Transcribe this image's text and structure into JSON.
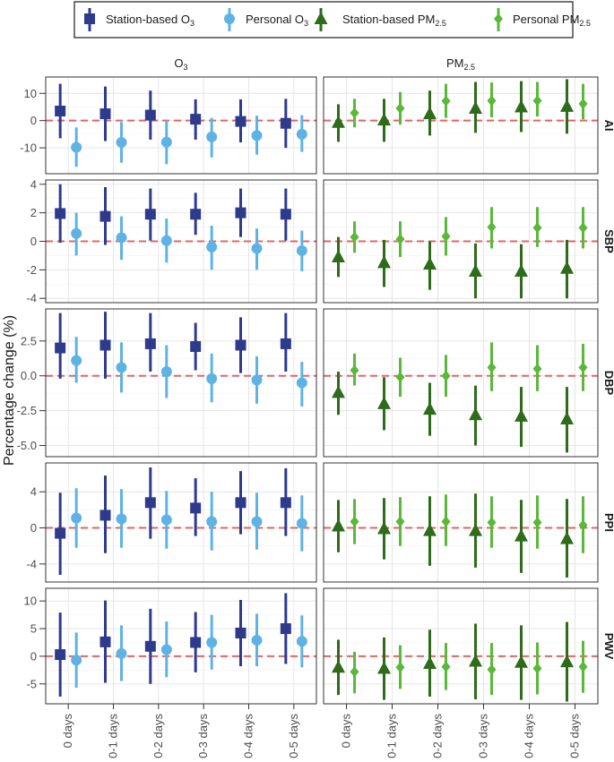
{
  "chart_data": {
    "type": "scatter",
    "subtype": "point-range faceted",
    "ylabel": "Percentage change (%)",
    "categories": [
      "0 days",
      "0-1 days",
      "0-2 days",
      "0-3 days",
      "0-4 days",
      "0-5 days"
    ],
    "legend_position": "top",
    "legend": [
      {
        "key": "station_o3",
        "label": "Station-based O",
        "sub": "3",
        "color": "#2e3a8c",
        "shape": "square"
      },
      {
        "key": "personal_o3",
        "label": "Personal O",
        "sub": "3",
        "color": "#5fb3e4",
        "shape": "circle"
      },
      {
        "key": "station_pm",
        "label": "Station-based PM",
        "sub": "2.5",
        "color": "#2e6b1a",
        "shape": "triangle"
      },
      {
        "key": "personal_pm",
        "label": "Personal PM",
        "sub": "2.5",
        "color": "#5ab83a",
        "shape": "diamond"
      }
    ],
    "columns": [
      {
        "label": "O",
        "sub": "3"
      },
      {
        "label": "PM",
        "sub": "2.5"
      }
    ],
    "rows": [
      {
        "label": "AI",
        "ylim": [
          -19.5,
          16
        ],
        "yticks": [
          {
            "v": 10,
            "t": "10"
          },
          {
            "v": 0,
            "t": "0"
          },
          {
            "v": -10,
            "t": "-10"
          }
        ],
        "col0": [
          {
            "key": "station_o3",
            "values": [
              [
                3.5,
                -6.5,
                13.5
              ],
              [
                2.5,
                -7.5,
                12.5
              ],
              [
                2.0,
                -7.0,
                11.0
              ],
              [
                0.5,
                -7.0,
                7.8
              ],
              [
                -0.3,
                -8.0,
                7.8
              ],
              [
                -1.0,
                -10.0,
                8.0
              ]
            ]
          },
          {
            "key": "personal_o3",
            "values": [
              [
                -9.8,
                -17.0,
                -2.5
              ],
              [
                -8.0,
                -15.5,
                -0.5
              ],
              [
                -7.9,
                -16.0,
                0.0
              ],
              [
                -6.0,
                -13.5,
                1.0
              ],
              [
                -5.5,
                -12.5,
                1.8
              ],
              [
                -5.0,
                -11.5,
                2.0
              ]
            ]
          }
        ],
        "col1": [
          {
            "key": "station_pm",
            "values": [
              [
                -0.7,
                -7.8,
                6.0
              ],
              [
                0.2,
                -7.8,
                8.0
              ],
              [
                2.5,
                -5.5,
                11.0
              ],
              [
                4.5,
                -4.5,
                14.2
              ],
              [
                5.0,
                -4.2,
                14.5
              ],
              [
                5.2,
                -4.8,
                15.2
              ]
            ]
          },
          {
            "key": "personal_pm",
            "values": [
              [
                2.8,
                -2.5,
                8.0
              ],
              [
                4.5,
                -1.5,
                10.5
              ],
              [
                7.2,
                1.0,
                13.5
              ],
              [
                7.3,
                1.2,
                14.0
              ],
              [
                7.3,
                1.5,
                14.2
              ],
              [
                6.2,
                0.5,
                13.5
              ]
            ]
          }
        ]
      },
      {
        "label": "SBP",
        "ylim": [
          -4.3,
          4.3
        ],
        "yticks": [
          {
            "v": 4,
            "t": "4"
          },
          {
            "v": 2,
            "t": "2"
          },
          {
            "v": 0,
            "t": "0"
          },
          {
            "v": -2,
            "t": "-2"
          },
          {
            "v": -4,
            "t": "-4"
          }
        ],
        "col0": [
          {
            "key": "station_o3",
            "values": [
              [
                1.95,
                -0.1,
                4.0
              ],
              [
                1.75,
                -0.25,
                3.8
              ],
              [
                1.9,
                0.05,
                3.7
              ],
              [
                1.9,
                0.45,
                3.4
              ],
              [
                2.0,
                0.3,
                3.7
              ],
              [
                1.9,
                0.05,
                3.7
              ]
            ]
          },
          {
            "key": "personal_o3",
            "values": [
              [
                0.55,
                -1.0,
                2.0
              ],
              [
                0.25,
                -1.3,
                1.75
              ],
              [
                0.05,
                -1.5,
                1.6
              ],
              [
                -0.4,
                -2.0,
                1.1
              ],
              [
                -0.5,
                -2.0,
                0.9
              ],
              [
                -0.65,
                -2.1,
                0.75
              ]
            ]
          }
        ],
        "col1": [
          {
            "key": "station_pm",
            "values": [
              [
                -1.1,
                -2.5,
                0.3
              ],
              [
                -1.5,
                -3.2,
                0.1
              ],
              [
                -1.6,
                -3.4,
                0.0
              ],
              [
                -2.1,
                -4.0,
                -0.15
              ],
              [
                -2.1,
                -4.0,
                -0.2
              ],
              [
                -1.9,
                -4.0,
                0.1
              ]
            ]
          },
          {
            "key": "personal_pm",
            "values": [
              [
                0.3,
                -0.8,
                1.4
              ],
              [
                0.15,
                -1.1,
                1.4
              ],
              [
                0.35,
                -1.0,
                1.7
              ],
              [
                1.0,
                -0.5,
                2.4
              ],
              [
                0.95,
                -0.4,
                2.4
              ],
              [
                0.95,
                -0.5,
                2.4
              ]
            ]
          }
        ]
      },
      {
        "label": "DBP",
        "ylim": [
          -5.8,
          4.8
        ],
        "yticks": [
          {
            "v": 2.5,
            "t": "2.5"
          },
          {
            "v": 0,
            "t": "0.0"
          },
          {
            "v": -2.5,
            "t": "-2.5"
          },
          {
            "v": -5,
            "t": "-5.0"
          }
        ],
        "col0": [
          {
            "key": "station_o3",
            "values": [
              [
                2.0,
                -0.2,
                4.5
              ],
              [
                2.2,
                -0.2,
                4.6
              ],
              [
                2.3,
                0.3,
                4.5
              ],
              [
                2.1,
                0.4,
                3.8
              ],
              [
                2.2,
                0.2,
                4.2
              ],
              [
                2.3,
                0.3,
                4.5
              ]
            ]
          },
          {
            "key": "personal_o3",
            "values": [
              [
                1.1,
                -0.5,
                2.8
              ],
              [
                0.6,
                -1.2,
                2.4
              ],
              [
                0.3,
                -1.6,
                2.2
              ],
              [
                -0.2,
                -1.9,
                1.6
              ],
              [
                -0.3,
                -2.0,
                1.4
              ],
              [
                -0.5,
                -2.2,
                1.0
              ]
            ]
          }
        ],
        "col1": [
          {
            "key": "station_pm",
            "values": [
              [
                -1.2,
                -2.8,
                0.3
              ],
              [
                -2.0,
                -3.9,
                -0.1
              ],
              [
                -2.4,
                -4.3,
                -0.5
              ],
              [
                -2.8,
                -5.0,
                -0.7
              ],
              [
                -2.9,
                -5.1,
                -0.8
              ],
              [
                -3.1,
                -5.5,
                -0.8
              ]
            ]
          },
          {
            "key": "personal_pm",
            "values": [
              [
                0.4,
                -0.7,
                1.6
              ],
              [
                -0.1,
                -1.5,
                1.3
              ],
              [
                0.0,
                -1.5,
                1.5
              ],
              [
                0.6,
                -1.1,
                2.4
              ],
              [
                0.5,
                -1.1,
                2.2
              ],
              [
                0.6,
                -1.1,
                2.3
              ]
            ]
          }
        ]
      },
      {
        "label": "PPI",
        "ylim": [
          -6.0,
          7.2
        ],
        "yticks": [
          {
            "v": 4,
            "t": "4"
          },
          {
            "v": 0,
            "t": "0"
          },
          {
            "v": -4,
            "t": "-4"
          }
        ],
        "col0": [
          {
            "key": "station_o3",
            "values": [
              [
                -0.6,
                -5.2,
                3.9
              ],
              [
                1.4,
                -2.8,
                5.8
              ],
              [
                2.8,
                -1.2,
                6.7
              ],
              [
                2.2,
                -0.9,
                5.5
              ],
              [
                2.8,
                -0.7,
                6.3
              ],
              [
                2.8,
                -0.9,
                6.6
              ]
            ]
          },
          {
            "key": "personal_o3",
            "values": [
              [
                1.1,
                -2.2,
                4.4
              ],
              [
                1.0,
                -2.2,
                4.3
              ],
              [
                0.9,
                -2.3,
                4.1
              ],
              [
                0.7,
                -2.5,
                4.0
              ],
              [
                0.7,
                -2.4,
                3.9
              ],
              [
                0.5,
                -2.6,
                3.6
              ]
            ]
          }
        ],
        "col1": [
          {
            "key": "station_pm",
            "values": [
              [
                0.2,
                -2.7,
                3.1
              ],
              [
                -0.1,
                -3.5,
                3.3
              ],
              [
                -0.3,
                -4.2,
                3.5
              ],
              [
                -0.3,
                -4.4,
                3.8
              ],
              [
                -0.9,
                -5.0,
                3.1
              ],
              [
                -1.2,
                -5.5,
                3.2
              ]
            ]
          },
          {
            "key": "personal_pm",
            "values": [
              [
                0.7,
                -1.8,
                3.2
              ],
              [
                0.7,
                -2.0,
                3.4
              ],
              [
                0.7,
                -2.0,
                3.7
              ],
              [
                0.6,
                -2.2,
                3.5
              ],
              [
                0.6,
                -2.3,
                3.6
              ],
              [
                0.3,
                -2.8,
                3.5
              ]
            ]
          }
        ]
      },
      {
        "label": "PWV",
        "ylim": [
          -8.6,
          12.3
        ],
        "yticks": [
          {
            "v": 10,
            "t": "10"
          },
          {
            "v": 5,
            "t": "5"
          },
          {
            "v": 0,
            "t": "0"
          },
          {
            "v": -5,
            "t": "-5"
          }
        ],
        "col0": [
          {
            "key": "station_o3",
            "values": [
              [
                0.3,
                -7.3,
                7.9
              ],
              [
                2.6,
                -4.8,
                10.1
              ],
              [
                1.8,
                -5.0,
                8.6
              ],
              [
                2.5,
                -2.9,
                8.0
              ],
              [
                4.2,
                -1.8,
                10.2
              ],
              [
                5.0,
                -1.4,
                11.4
              ]
            ]
          },
          {
            "key": "personal_o3",
            "values": [
              [
                -0.7,
                -5.7,
                4.3
              ],
              [
                0.5,
                -4.5,
                5.6
              ],
              [
                1.2,
                -3.8,
                6.3
              ],
              [
                2.5,
                -2.4,
                7.5
              ],
              [
                2.9,
                -1.8,
                7.7
              ],
              [
                2.7,
                -2.0,
                7.4
              ]
            ]
          }
        ],
        "col1": [
          {
            "key": "station_pm",
            "values": [
              [
                -2.0,
                -7.0,
                3.0
              ],
              [
                -2.2,
                -7.9,
                3.4
              ],
              [
                -1.3,
                -7.3,
                4.8
              ],
              [
                -0.9,
                -7.8,
                5.9
              ],
              [
                -1.1,
                -7.9,
                5.6
              ],
              [
                -1.0,
                -8.2,
                6.2
              ]
            ]
          },
          {
            "key": "personal_pm",
            "values": [
              [
                -2.8,
                -6.7,
                0.8
              ],
              [
                -2.0,
                -5.9,
                2.0
              ],
              [
                -1.9,
                -6.1,
                2.4
              ],
              [
                -2.4,
                -7.0,
                2.4
              ],
              [
                -2.2,
                -6.9,
                2.5
              ],
              [
                -1.9,
                -6.6,
                2.8
              ]
            ]
          }
        ]
      }
    ],
    "reference_line": {
      "y": 0,
      "color": "#e06666",
      "style": "dashed"
    }
  }
}
